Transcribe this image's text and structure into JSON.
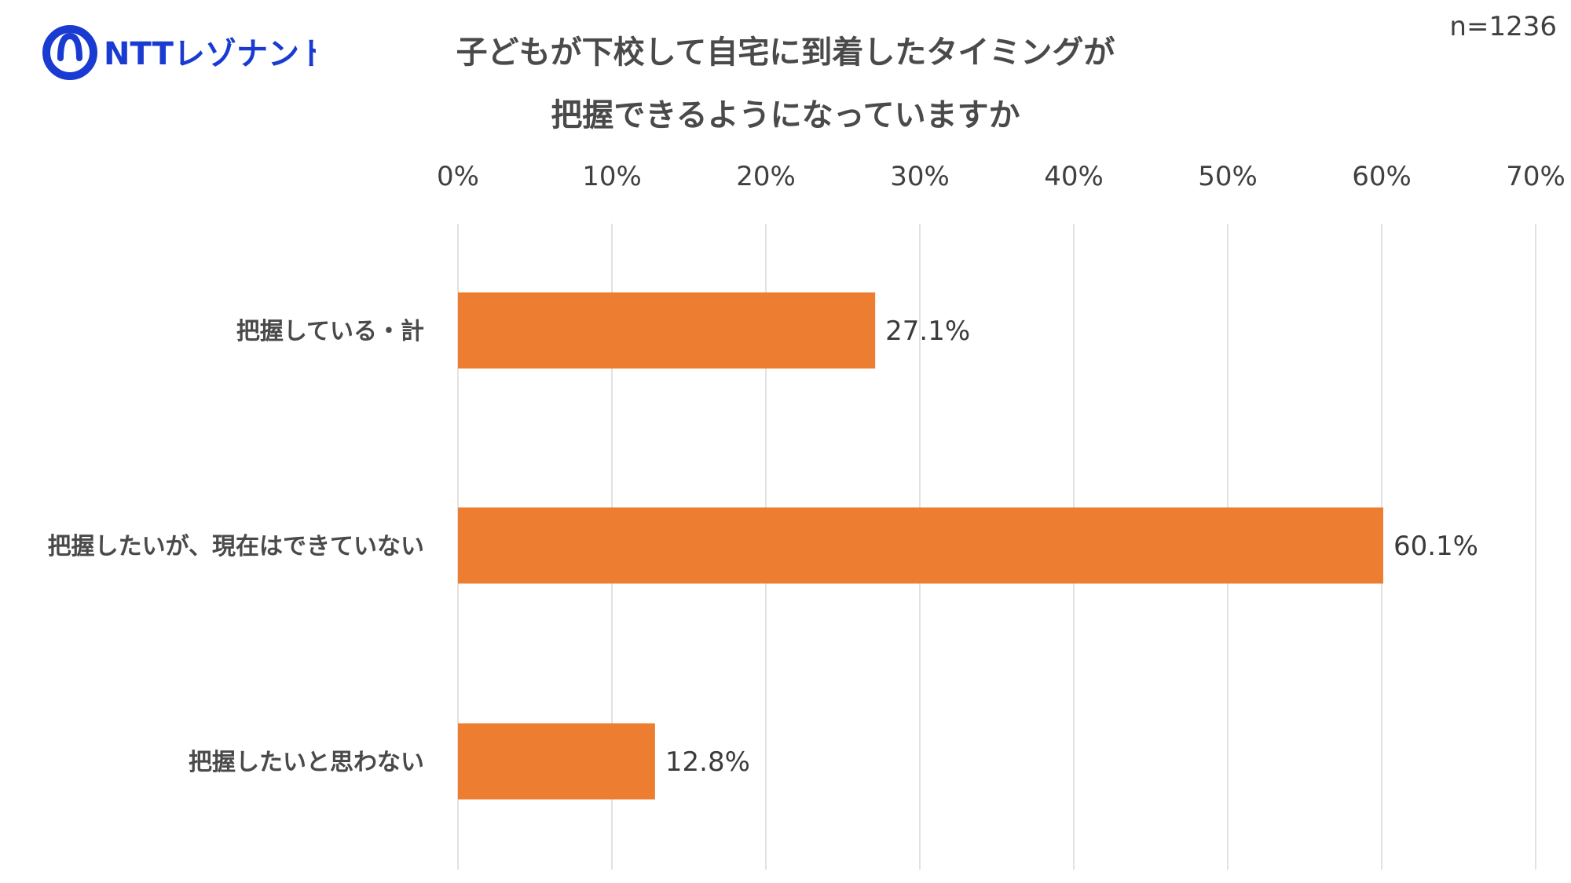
{
  "logo": {
    "text": "NTTレゾナント",
    "color": "#1a3bd1"
  },
  "title": {
    "line1": "子どもが下校して自宅に到着したタイミングが",
    "line2": "把握できるようになっていますか"
  },
  "sample_size": "n=1236",
  "chart_data": {
    "type": "bar",
    "orientation": "horizontal",
    "title": "子どもが下校して自宅に到着したタイミングが把握できるようになっていますか",
    "categories": [
      "把握している・計",
      "把握したいが、現在はできていない",
      "把握したいと思わない"
    ],
    "values": [
      27.1,
      60.1,
      12.8
    ],
    "value_labels": [
      "27.1%",
      "60.1%",
      "12.8%"
    ],
    "xlim": [
      0,
      70
    ],
    "x_ticks": [
      "0%",
      "10%",
      "20%",
      "30%",
      "40%",
      "50%",
      "60%",
      "70%"
    ],
    "x_tick_values": [
      0,
      10,
      20,
      30,
      40,
      50,
      60,
      70
    ],
    "x_axis_position": "top",
    "grid": true,
    "legend": "none",
    "bar_color": "#ED7D31",
    "grid_color": "#d9d9d9"
  }
}
